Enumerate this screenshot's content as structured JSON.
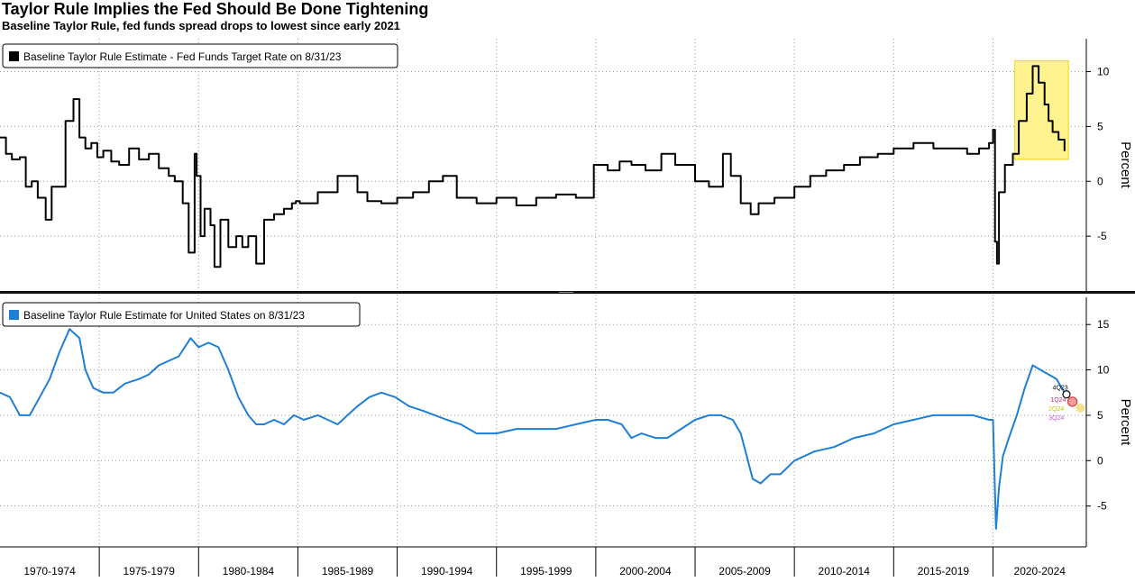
{
  "header": {
    "title": "Taylor Rule Implies the Fed Should Be Done Tightening",
    "subtitle": "Baseline Taylor Rule, fed funds spread drops to lowest since early 2021"
  },
  "colors": {
    "spread": "#000000",
    "taylor": "#1f7fd6",
    "highlight": "#fff38a",
    "grid": "#9a9a9a"
  },
  "chart_data": [
    {
      "type": "line",
      "legend": "Baseline Taylor Rule Estimate - Fed Funds Target Rate on 8/31/23",
      "legend_placement": "top-left",
      "ylabel": "Percent",
      "ylim": [
        -10,
        13
      ],
      "yticks": [
        10,
        5,
        0,
        -5
      ],
      "grid": true,
      "highlight": {
        "x": [
          2021.1,
          2023.8
        ],
        "y": [
          2,
          11
        ]
      },
      "series": [
        {
          "x": [
            1970.0,
            1970.3,
            1970.6,
            1971.0,
            1971.3,
            1971.6,
            1971.9,
            1972.3,
            1972.6,
            1973.0,
            1973.3,
            1973.7,
            1974.0,
            1974.3,
            1974.6,
            1974.9,
            1975.2,
            1975.6,
            1976.0,
            1976.5,
            1977.0,
            1977.5,
            1978.0,
            1978.5,
            1978.8,
            1979.2,
            1979.5,
            1979.8,
            1979.9,
            1980.1,
            1980.3,
            1980.6,
            1980.8,
            1981.1,
            1981.5,
            1981.9,
            1982.2,
            1982.5,
            1982.9,
            1983.3,
            1983.8,
            1984.3,
            1984.7,
            1984.9,
            1985.1,
            1986.0,
            1987.0,
            1988.0,
            1988.5,
            1989.2,
            1990.0,
            1990.8,
            1991.6,
            1992.3,
            1993.0,
            1994.0,
            1995.0,
            1996.0,
            1997.0,
            1998.0,
            1999.0,
            1999.9,
            2000.6,
            2001.2,
            2001.8,
            2002.5,
            2003.3,
            2004.0,
            2005.0,
            2005.7,
            2006.4,
            2006.8,
            2007.3,
            2007.8,
            2008.2,
            2009.0,
            2010.0,
            2010.8,
            2011.6,
            2012.5,
            2013.3,
            2014.2,
            2015.0,
            2016.0,
            2017.0,
            2018.0,
            2018.7,
            2019.3,
            2019.8,
            2020.0,
            2020.1,
            2020.2,
            2020.3,
            2020.6,
            2021.0,
            2021.3,
            2021.7,
            2022.0,
            2022.3,
            2022.6,
            2022.8,
            2023.0,
            2023.3,
            2023.6
          ],
          "y": [
            4.0,
            2.5,
            2.0,
            2.2,
            -0.5,
            0.0,
            -1.5,
            -3.5,
            -0.5,
            -0.5,
            5.5,
            7.5,
            4.0,
            3.0,
            3.5,
            2.2,
            2.8,
            1.8,
            1.5,
            3.0,
            2.0,
            2.5,
            1.2,
            0.5,
            0.0,
            -2.0,
            -6.5,
            2.5,
            0.5,
            -5.0,
            -2.5,
            -4.0,
            -7.8,
            -3.5,
            -6.0,
            -5.0,
            -6.0,
            -5.0,
            -7.5,
            -3.5,
            -3.0,
            -2.5,
            -2.0,
            -1.8,
            -2.0,
            -1.0,
            0.5,
            -1.0,
            -1.8,
            -2.0,
            -1.5,
            -1.0,
            0.0,
            0.5,
            -1.5,
            -2.0,
            -1.5,
            -2.2,
            -1.5,
            -1.2,
            -1.5,
            1.5,
            1.0,
            1.8,
            1.5,
            1.0,
            2.5,
            1.5,
            0.0,
            -0.5,
            2.5,
            0.5,
            -2.0,
            -3.0,
            -2.0,
            -1.5,
            -0.5,
            0.5,
            1.0,
            1.5,
            2.2,
            2.5,
            3.0,
            3.5,
            3.0,
            3.0,
            2.5,
            3.0,
            3.5,
            4.7,
            -5.5,
            -7.5,
            -1.0,
            1.5,
            2.5,
            5.5,
            8.0,
            10.5,
            9.0,
            7.0,
            5.5,
            4.5,
            3.8,
            2.8
          ]
        }
      ]
    },
    {
      "type": "line",
      "legend": "Baseline Taylor Rule Estimate for United States  on 8/31/23",
      "legend_placement": "top-left",
      "ylabel": "Percent",
      "ylim": [
        -9.5,
        18
      ],
      "yticks": [
        15,
        10,
        5,
        0,
        -5
      ],
      "grid": true,
      "series": [
        {
          "x": [
            1970.0,
            1970.5,
            1971.0,
            1971.5,
            1972.0,
            1972.5,
            1973.0,
            1973.5,
            1974.0,
            1974.3,
            1974.7,
            1975.2,
            1975.7,
            1976.3,
            1977.0,
            1977.5,
            1978.0,
            1978.5,
            1979.0,
            1979.6,
            1980.0,
            1980.5,
            1981.0,
            1981.5,
            1982.0,
            1982.5,
            1982.9,
            1983.3,
            1983.8,
            1984.3,
            1984.8,
            1985.3,
            1986.0,
            1987.0,
            1987.5,
            1988.0,
            1988.6,
            1989.2,
            1989.9,
            1990.6,
            1991.3,
            1991.9,
            1992.5,
            1993.2,
            1994.0,
            1995.0,
            1996.0,
            1997.0,
            1998.0,
            1999.0,
            2000.0,
            2000.6,
            2001.3,
            2001.8,
            2002.3,
            2003.0,
            2003.6,
            2004.3,
            2005.0,
            2005.7,
            2006.3,
            2006.9,
            2007.3,
            2007.6,
            2007.9,
            2008.3,
            2008.8,
            2009.3,
            2010.0,
            2011.0,
            2012.0,
            2013.0,
            2014.0,
            2015.0,
            2016.0,
            2017.0,
            2018.0,
            2019.0,
            2019.8,
            2020.0,
            2020.15,
            2020.3,
            2020.5,
            2020.8,
            2021.2,
            2021.6,
            2022.0,
            2022.4,
            2022.8,
            2023.2,
            2023.6
          ],
          "y": [
            7.5,
            7.0,
            5.0,
            5.0,
            7.0,
            9.0,
            12.0,
            14.5,
            13.5,
            10.0,
            8.0,
            7.5,
            7.5,
            8.5,
            9.0,
            9.5,
            10.5,
            11.0,
            11.5,
            13.5,
            12.5,
            13.0,
            12.5,
            10.0,
            7.0,
            5.0,
            4.0,
            4.0,
            4.5,
            4.0,
            5.0,
            4.5,
            5.0,
            4.0,
            5.0,
            6.0,
            7.0,
            7.5,
            7.0,
            6.0,
            5.5,
            5.0,
            4.5,
            4.0,
            3.0,
            3.0,
            3.5,
            3.5,
            3.5,
            4.0,
            4.5,
            4.5,
            4.0,
            2.5,
            3.0,
            2.5,
            2.5,
            3.5,
            4.5,
            5.0,
            5.0,
            4.5,
            3.0,
            0.5,
            -2.0,
            -2.5,
            -1.5,
            -1.5,
            0.0,
            1.0,
            1.5,
            2.5,
            3.0,
            4.0,
            4.5,
            5.0,
            5.0,
            5.0,
            4.5,
            4.5,
            -7.5,
            -3.0,
            0.5,
            2.5,
            5.0,
            8.0,
            10.5,
            10.0,
            9.5,
            9.0,
            7.5
          ]
        }
      ],
      "annotations": {
        "circle": [
          2023.7,
          7.3
        ],
        "dots": [
          {
            "x": 2024.0,
            "y": 6.5,
            "color": "#f5a0a0"
          },
          {
            "x": 2024.4,
            "y": 5.8,
            "color": "#f6e08a"
          }
        ],
        "labels": [
          {
            "text": "4Q23",
            "x": 2023.0,
            "y": 7.8,
            "color": "#000000"
          },
          {
            "text": "1Q24",
            "x": 2022.9,
            "y": 6.5,
            "color": "#d2287a"
          },
          {
            "text": "2Q24",
            "x": 2022.8,
            "y": 5.5,
            "color": "#c8c800"
          },
          {
            "text": "3Q24",
            "x": 2022.8,
            "y": 4.5,
            "color": "#c060d8"
          }
        ]
      }
    }
  ],
  "x_axis": {
    "range": [
      1970.0,
      2024.7
    ],
    "periods": [
      {
        "label": "1970-1974",
        "start": 1970,
        "end": 1975
      },
      {
        "label": "1975-1979",
        "start": 1975,
        "end": 1980
      },
      {
        "label": "1980-1984",
        "start": 1980,
        "end": 1985
      },
      {
        "label": "1985-1989",
        "start": 1985,
        "end": 1990
      },
      {
        "label": "1990-1994",
        "start": 1990,
        "end": 1995
      },
      {
        "label": "1995-1999",
        "start": 1995,
        "end": 2000
      },
      {
        "label": "2000-2004",
        "start": 2000,
        "end": 2005
      },
      {
        "label": "2005-2009",
        "start": 2005,
        "end": 2010
      },
      {
        "label": "2010-2014",
        "start": 2010,
        "end": 2015
      },
      {
        "label": "2015-2019",
        "start": 2015,
        "end": 2020
      },
      {
        "label": "2020-2024",
        "start": 2020,
        "end": 2025
      }
    ]
  }
}
